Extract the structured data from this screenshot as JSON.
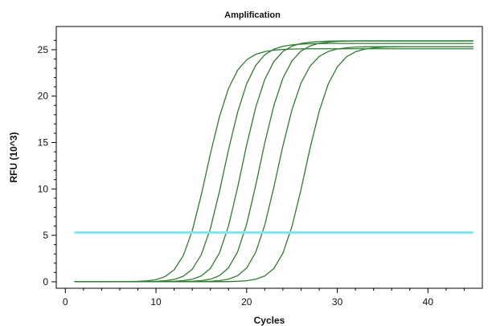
{
  "chart_data": {
    "type": "line",
    "title": "Amplification",
    "xlabel": "Cycles",
    "ylabel": "RFU (10^3)",
    "xlim": [
      -1,
      46
    ],
    "ylim": [
      -0.7,
      27.5
    ],
    "x_ticks": [
      0,
      10,
      20,
      30,
      40
    ],
    "y_ticks": [
      0,
      5,
      10,
      15,
      20,
      25
    ],
    "threshold": {
      "value": 5.3,
      "color": "#7ee7ee"
    },
    "series_color": "#2e7d32",
    "x": [
      1,
      2,
      3,
      4,
      5,
      6,
      7,
      8,
      9,
      10,
      11,
      12,
      13,
      14,
      15,
      16,
      17,
      18,
      19,
      20,
      21,
      22,
      23,
      24,
      25,
      26,
      27,
      28,
      29,
      30,
      31,
      32,
      33,
      34,
      35,
      36,
      37,
      38,
      39,
      40,
      41,
      42,
      43,
      44,
      45
    ],
    "series": [
      {
        "values": [
          0.0,
          0.0,
          0.0,
          0.0,
          0.0,
          0.01,
          0.02,
          0.04,
          0.1,
          0.23,
          0.56,
          1.29,
          2.8,
          5.5,
          9.38,
          13.78,
          17.79,
          20.84,
          22.79,
          23.91,
          24.5,
          24.8,
          24.95,
          25.03,
          25.07,
          25.09,
          25.1,
          25.1,
          25.1,
          25.1,
          25.1,
          25.1,
          25.1,
          25.1,
          25.1,
          25.1,
          25.1,
          25.1,
          25.1,
          25.1,
          25.1,
          25.1,
          25.1,
          25.1,
          25.1
        ]
      },
      {
        "values": [
          0.0,
          0.0,
          0.0,
          0.0,
          0.0,
          0.0,
          0.0,
          0.01,
          0.02,
          0.04,
          0.11,
          0.25,
          0.59,
          1.35,
          2.93,
          5.73,
          9.73,
          14.22,
          18.26,
          21.33,
          23.31,
          24.45,
          25.06,
          25.37,
          25.52,
          25.6,
          25.64,
          25.66,
          25.67,
          25.67,
          25.67,
          25.67,
          25.67,
          25.67,
          25.67,
          25.67,
          25.67,
          25.67,
          25.67,
          25.67,
          25.67,
          25.67,
          25.67,
          25.67,
          25.67
        ]
      },
      {
        "values": [
          0.0,
          0.0,
          0.0,
          0.0,
          0.0,
          0.0,
          0.0,
          0.0,
          0.0,
          0.01,
          0.02,
          0.05,
          0.12,
          0.27,
          0.63,
          1.44,
          3.1,
          6.02,
          10.15,
          14.73,
          18.79,
          21.81,
          23.72,
          24.81,
          25.38,
          25.67,
          25.81,
          25.88,
          25.92,
          25.94,
          25.94,
          25.95,
          25.95,
          25.95,
          25.95,
          25.95,
          25.95,
          25.95,
          25.95,
          25.95,
          25.95,
          25.95,
          25.95,
          25.95,
          25.95
        ]
      },
      {
        "values": [
          0.0,
          0.0,
          0.0,
          0.0,
          0.0,
          0.0,
          0.0,
          0.0,
          0.0,
          0.0,
          0.0,
          0.01,
          0.02,
          0.05,
          0.12,
          0.28,
          0.66,
          1.5,
          3.22,
          6.21,
          10.39,
          14.97,
          18.98,
          21.94,
          23.8,
          24.86,
          25.41,
          25.69,
          25.82,
          25.89,
          25.92,
          25.94,
          25.95,
          25.95,
          25.95,
          25.95,
          25.95,
          25.95,
          25.95,
          25.95,
          25.95,
          25.95,
          25.95,
          25.95,
          25.95
        ]
      },
      {
        "values": [
          0.0,
          0.0,
          0.0,
          0.0,
          0.0,
          0.0,
          0.0,
          0.0,
          0.0,
          0.0,
          0.0,
          0.0,
          0.0,
          0.01,
          0.02,
          0.05,
          0.12,
          0.28,
          0.65,
          1.48,
          3.18,
          6.12,
          10.19,
          14.64,
          18.54,
          21.42,
          23.23,
          24.27,
          24.81,
          25.08,
          25.21,
          25.28,
          25.31,
          25.32,
          25.33,
          25.33,
          25.33,
          25.33,
          25.33,
          25.33,
          25.33,
          25.33,
          25.33,
          25.33,
          25.33
        ]
      },
      {
        "values": [
          0.0,
          0.0,
          0.0,
          0.0,
          0.0,
          0.0,
          0.0,
          0.0,
          0.0,
          0.0,
          0.0,
          0.0,
          0.0,
          0.0,
          0.0,
          0.0,
          0.01,
          0.02,
          0.05,
          0.11,
          0.27,
          0.63,
          1.43,
          3.08,
          5.95,
          9.96,
          14.41,
          18.36,
          21.3,
          23.16,
          24.23,
          24.78,
          25.06,
          25.2,
          25.27,
          25.3,
          25.32,
          25.33,
          25.33,
          25.33,
          25.33,
          25.33,
          25.33,
          25.33,
          25.33
        ]
      }
    ]
  }
}
